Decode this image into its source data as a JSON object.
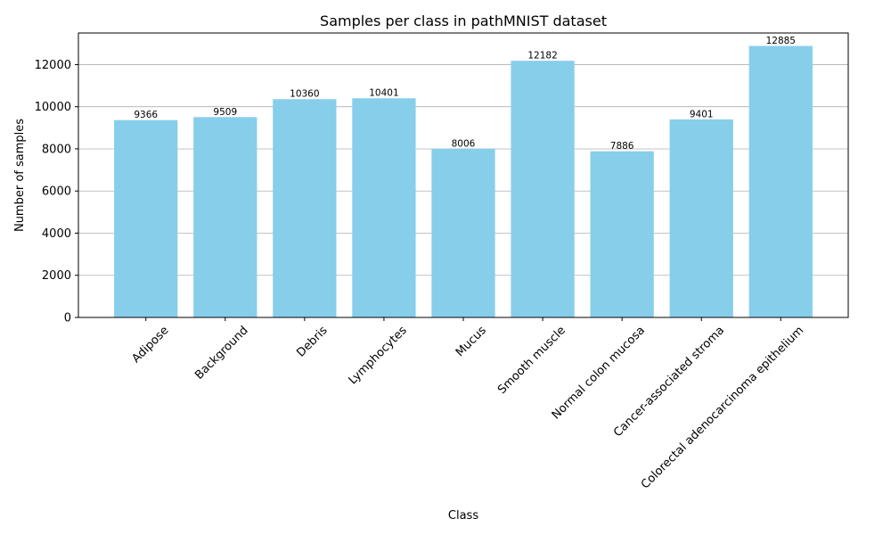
{
  "chart_data": {
    "type": "bar",
    "title": "Samples per class in pathMNIST dataset",
    "xlabel": "Class",
    "ylabel": "Number of samples",
    "categories": [
      "Adipose",
      "Background",
      "Debris",
      "Lymphocytes",
      "Mucus",
      "Smooth muscle",
      "Normal colon mucosa",
      "Cancer-associated stroma",
      "Colorectal adenocarcinoma epithelium"
    ],
    "values": [
      9366,
      9509,
      10360,
      10401,
      8006,
      12182,
      7886,
      9401,
      12885
    ],
    "ylim": [
      0,
      13500
    ],
    "yticks": [
      0,
      2000,
      4000,
      6000,
      8000,
      10000,
      12000
    ],
    "grid": "horizontal",
    "bar_color": "#87ceeb",
    "data_labels": true
  }
}
